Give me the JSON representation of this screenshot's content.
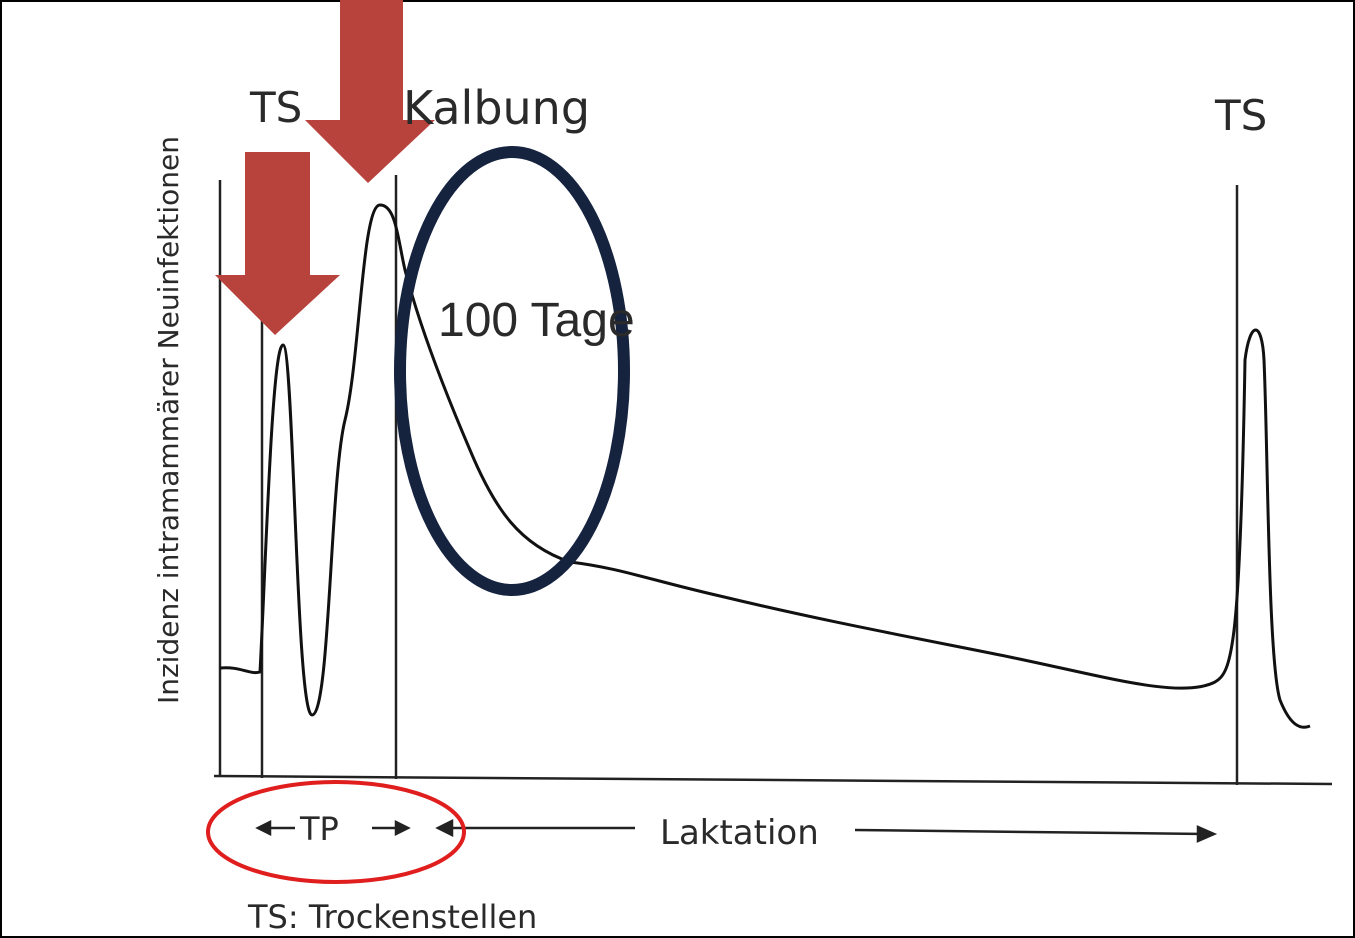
{
  "y_axis_label": "Inzidenz intramammärer Neuinfektionen",
  "labels": {
    "ts_left": "TS",
    "calving": "Kalbung",
    "ts_right": "TS",
    "days": "100 Tage"
  },
  "periods": {
    "dry": "TP",
    "lactation": "Laktation"
  },
  "footnote": "TS: Trockenstellen"
}
